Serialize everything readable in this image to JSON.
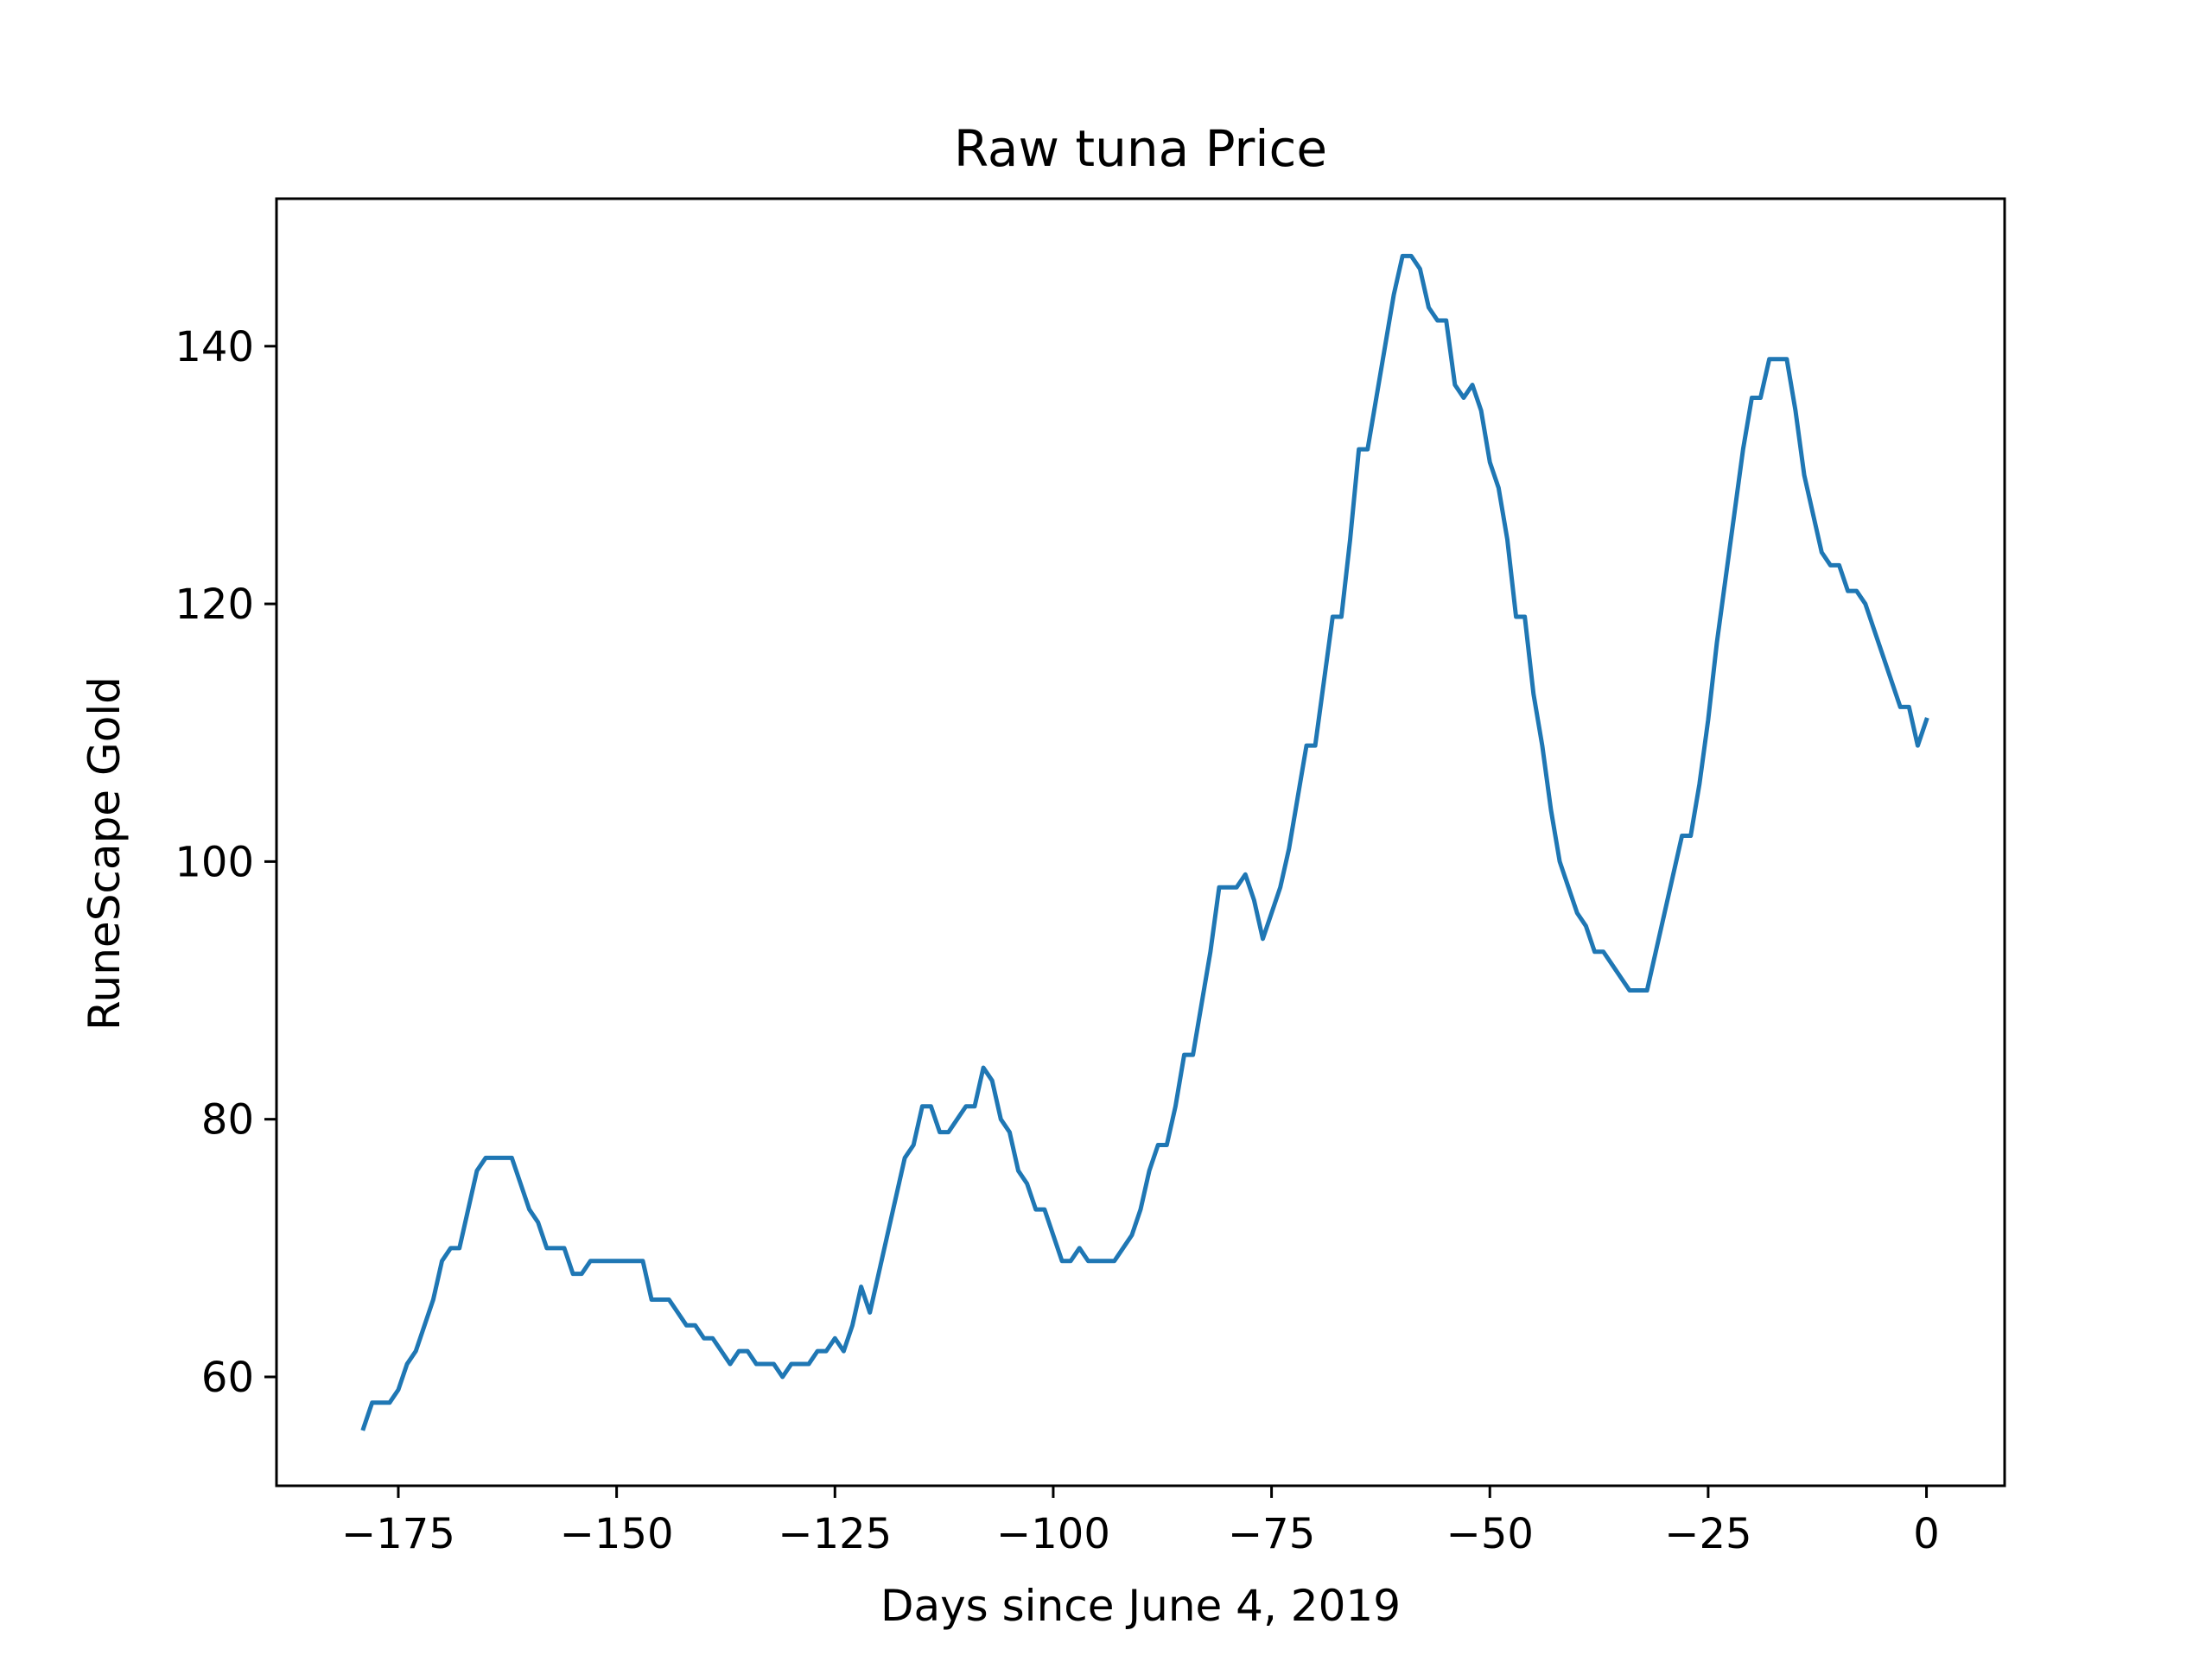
{
  "chart_data": {
    "type": "line",
    "title": "Raw tuna Price",
    "xlabel": "Days since June 4, 2019",
    "ylabel": "RuneScape Gold",
    "xlim": [
      -188.95,
      8.95
    ],
    "ylim": [
      51.55,
      151.45
    ],
    "grid": false,
    "xticks": [
      -175,
      -150,
      -125,
      -100,
      -75,
      -50,
      -25,
      0
    ],
    "yticks": [
      60,
      80,
      100,
      120,
      140
    ],
    "line_color": "#1f77b4",
    "x_start": -179,
    "values": [
      56,
      58,
      58,
      58,
      59,
      61,
      62,
      64,
      66,
      69,
      70,
      70,
      73,
      76,
      77,
      77,
      77,
      77,
      75,
      73,
      72,
      70,
      70,
      70,
      68,
      68,
      69,
      69,
      69,
      69,
      69,
      69,
      69,
      66,
      66,
      66,
      65,
      64,
      64,
      63,
      63,
      62,
      61,
      62,
      62,
      61,
      61,
      61,
      60,
      61,
      61,
      61,
      62,
      62,
      63,
      62,
      64,
      67,
      65,
      68,
      71,
      74,
      77,
      78,
      81,
      81,
      79,
      79,
      80,
      81,
      81,
      84,
      83,
      80,
      79,
      76,
      75,
      73,
      73,
      71,
      69,
      69,
      70,
      69,
      69,
      69,
      69,
      70,
      71,
      73,
      76,
      78,
      78,
      81,
      85,
      85,
      89,
      93,
      98,
      98,
      98,
      99,
      97,
      94,
      96,
      98,
      101,
      105,
      109,
      109,
      114,
      119,
      119,
      125,
      132,
      132,
      136,
      140,
      144,
      147,
      147,
      146,
      143,
      142,
      142,
      137,
      136,
      137,
      135,
      131,
      129,
      125,
      119,
      119,
      113,
      109,
      104,
      100,
      98,
      96,
      95,
      93,
      93,
      92,
      91,
      90,
      90,
      90,
      93,
      96,
      99,
      102,
      102,
      106,
      111,
      117,
      122,
      127,
      132,
      136,
      136,
      139,
      139,
      139,
      135,
      130,
      127,
      124,
      123,
      123,
      121,
      121,
      120,
      118,
      116,
      114,
      112,
      112,
      109,
      111
    ]
  }
}
